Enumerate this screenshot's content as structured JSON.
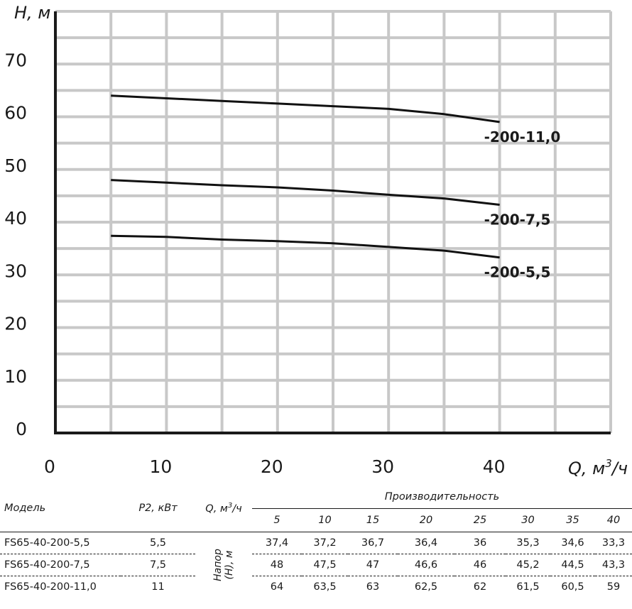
{
  "chart_data": {
    "type": "line",
    "xlabel_q": "Q, м",
    "xlabel_sup": "3",
    "xlabel_unit": "/ч",
    "ylabel": "H, м",
    "xlim": [
      0,
      50
    ],
    "ylim": [
      0,
      80
    ],
    "x_ticks": [
      0,
      10,
      20,
      30,
      40
    ],
    "y_ticks": [
      0,
      10,
      20,
      30,
      40,
      50,
      60,
      70
    ],
    "x_grid_step": 5,
    "y_grid_step": 5,
    "grid": true,
    "series": [
      {
        "label": "-200-11,0",
        "x": [
          5,
          10,
          15,
          20,
          25,
          30,
          35,
          40
        ],
        "y": [
          64,
          63.5,
          63,
          62.5,
          62,
          61.5,
          60.5,
          59
        ]
      },
      {
        "label": "-200-7,5",
        "x": [
          5,
          10,
          15,
          20,
          25,
          30,
          35,
          40
        ],
        "y": [
          48,
          47.5,
          47,
          46.6,
          46,
          45.2,
          44.5,
          43.3
        ]
      },
      {
        "label": "-200-5,5",
        "x": [
          5,
          10,
          15,
          20,
          25,
          30,
          35,
          40
        ],
        "y": [
          37.4,
          37.2,
          36.7,
          36.4,
          36,
          35.3,
          34.6,
          33.3
        ]
      }
    ]
  },
  "table": {
    "col_model": "Модель",
    "col_p2": "P2, кВт",
    "col_q_prefix": "Q, м",
    "col_q_sup": "3",
    "col_q_suffix": "/ч",
    "col_perf": "Производительность",
    "q_values": [
      "5",
      "10",
      "15",
      "20",
      "25",
      "30",
      "35",
      "40"
    ],
    "head_label_line1": "Напор",
    "head_label_line2": "(H), м",
    "rows": [
      {
        "model": "FS65-40-200-5,5",
        "p2": "5,5",
        "values": [
          "37,4",
          "37,2",
          "36,7",
          "36,4",
          "36",
          "35,3",
          "34,6",
          "33,3"
        ]
      },
      {
        "model": "FS65-40-200-7,5",
        "p2": "7,5",
        "values": [
          "48",
          "47,5",
          "47",
          "46,6",
          "46",
          "45,2",
          "44,5",
          "43,3"
        ]
      },
      {
        "model": "FS65-40-200-11,0",
        "p2": "11",
        "values": [
          "64",
          "63,5",
          "63",
          "62,5",
          "62",
          "61,5",
          "60,5",
          "59"
        ]
      }
    ]
  }
}
